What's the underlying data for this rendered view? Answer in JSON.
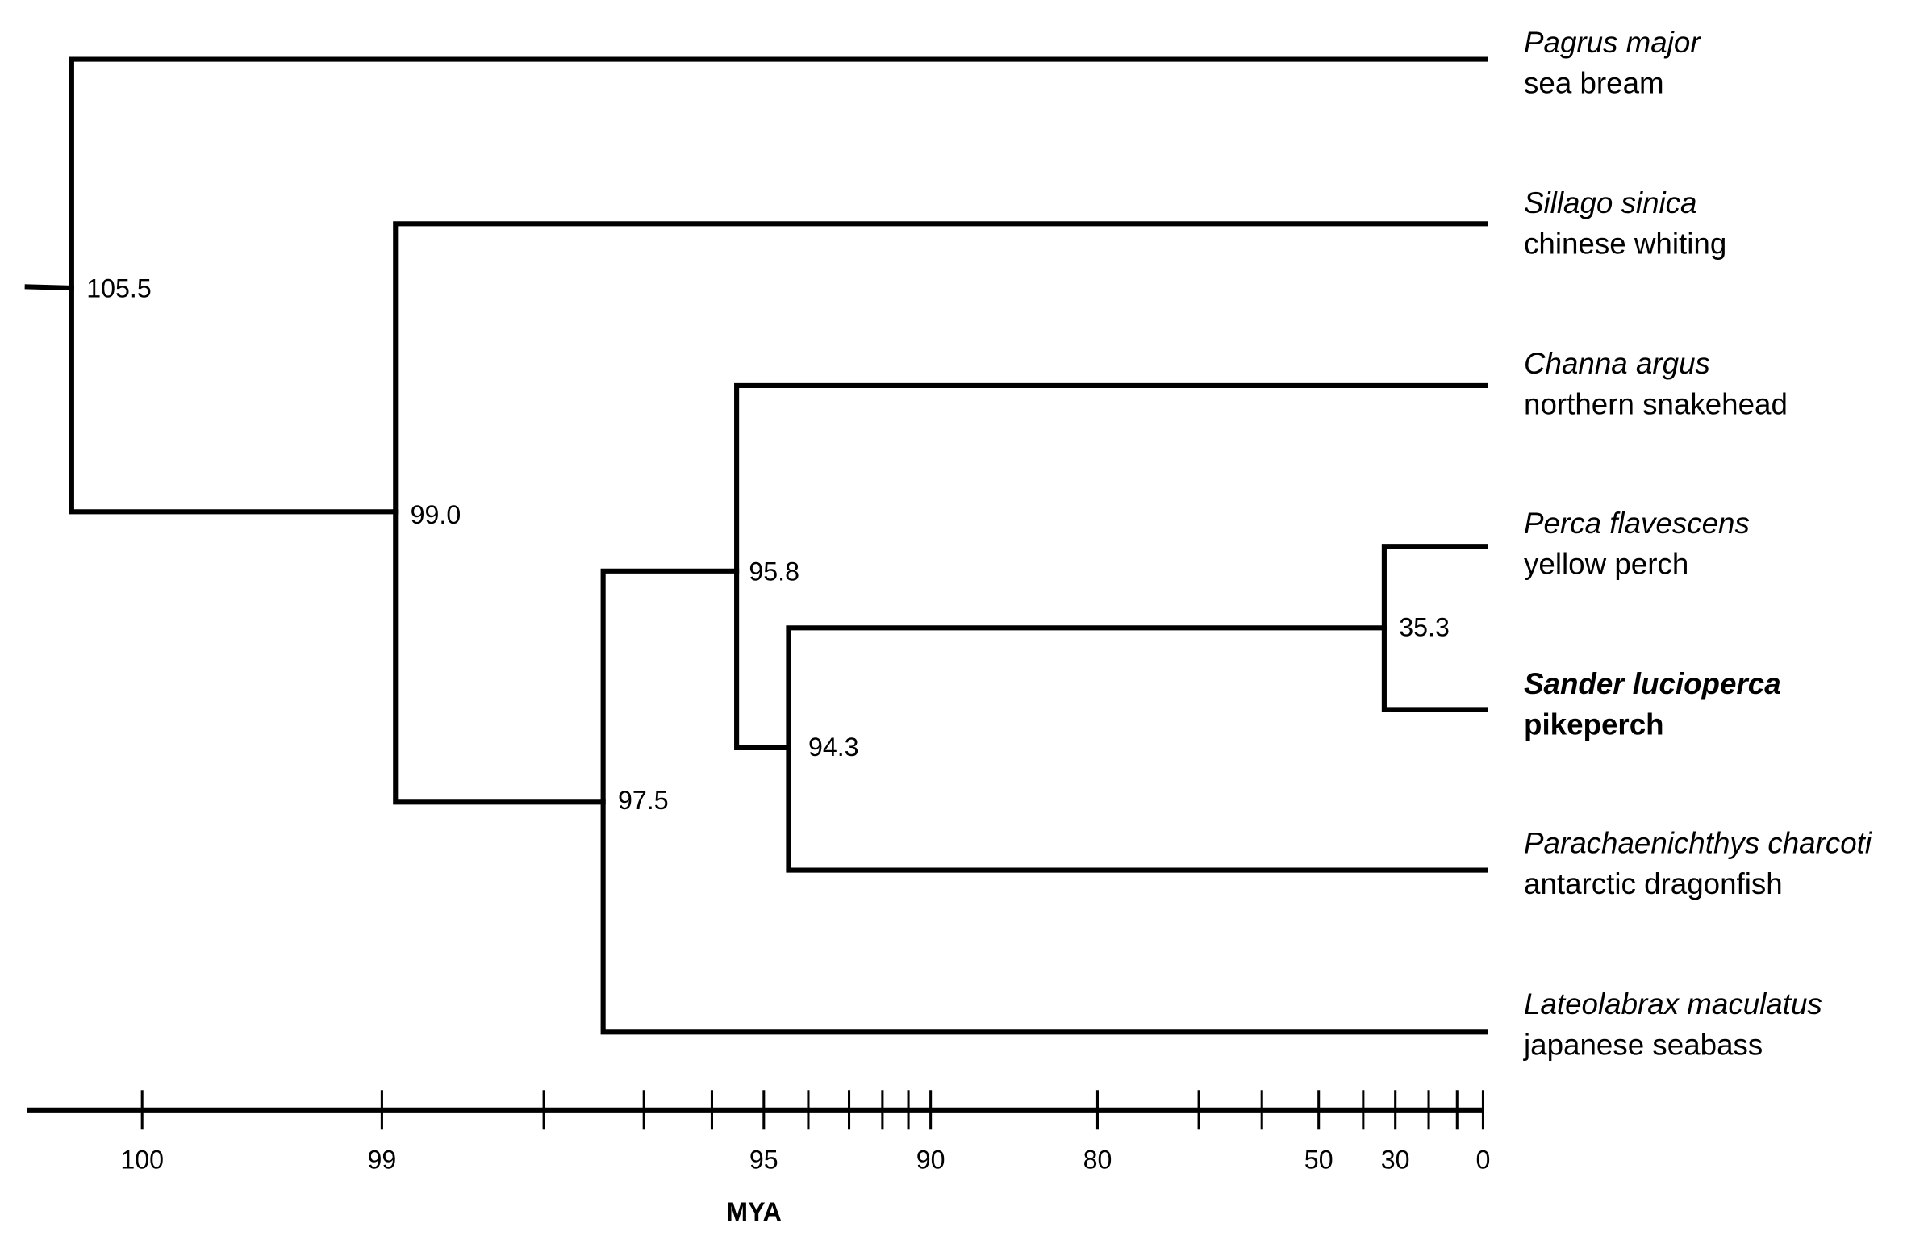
{
  "taxa": [
    {
      "latin": "Pagrus major",
      "common": "sea bream"
    },
    {
      "latin": "Sillago sinica",
      "common": "chinese whiting"
    },
    {
      "latin": "Channa argus",
      "common": "northern snakehead"
    },
    {
      "latin": "Perca flavescens",
      "common": "yellow perch"
    },
    {
      "latin": "Sander lucioperca",
      "common": "pikeperch"
    },
    {
      "latin": "Parachaenichthys charcoti",
      "common": "antarctic dragonfish"
    },
    {
      "latin": "Lateolabrax maculatus",
      "common": "japanese seabass"
    }
  ],
  "nodes": [
    "105.5",
    "99.0",
    "97.5",
    "95.8",
    "94.3",
    "35.3"
  ],
  "axis": {
    "tick_labels": [
      "100",
      "99",
      "95",
      "90",
      "80",
      "50",
      "30",
      "0"
    ],
    "title": "MYA"
  }
}
